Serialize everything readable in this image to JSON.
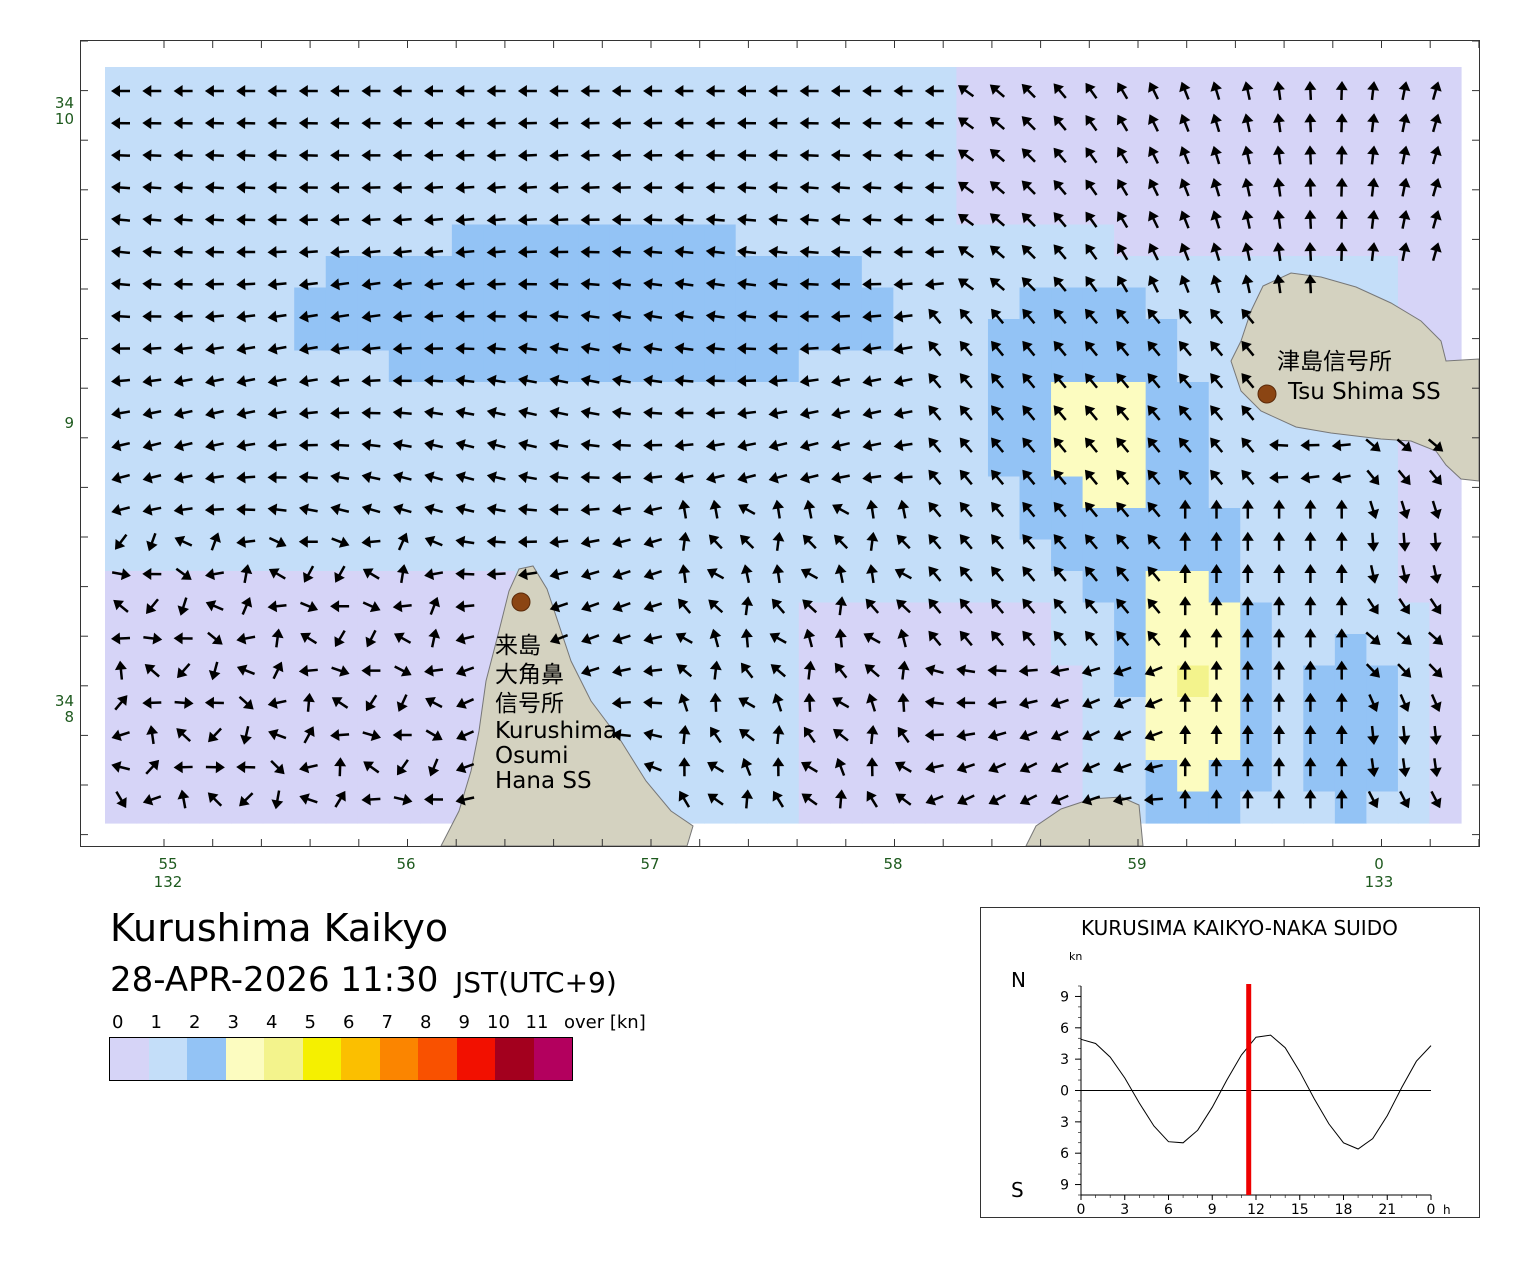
{
  "map": {
    "lat_labels": [
      {
        "deg": "34",
        "min": "10",
        "value": "34°10'"
      },
      {
        "deg": "",
        "min": "9",
        "value": "34°9'"
      },
      {
        "deg": "34",
        "min": "8",
        "value": "34°8'"
      }
    ],
    "lon_labels": [
      {
        "min": "55",
        "deg": "132",
        "value": "132°55'"
      },
      {
        "min": "56",
        "deg": "",
        "value": "132°56'"
      },
      {
        "min": "57",
        "deg": "",
        "value": "132°57'"
      },
      {
        "min": "58",
        "deg": "",
        "value": "132°58'"
      },
      {
        "min": "59",
        "deg": "",
        "value": "132°59'"
      },
      {
        "min": "0",
        "deg": "133",
        "value": "133°0'"
      }
    ],
    "stations": [
      {
        "name_jp": "津島信号所",
        "name_en": "Tsu Shima SS",
        "marker_color": "#8b4513"
      },
      {
        "name_jp_lines": [
          "来島",
          "大角鼻",
          "信号所"
        ],
        "name_en_lines": [
          "Kurushima",
          "Osumi",
          "Hana SS"
        ],
        "marker_color": "#8b4513"
      }
    ],
    "land_color": "#d4d2c0"
  },
  "title": "Kurushima Kaikyo",
  "datetime": "28-APR-2026 11:30",
  "timezone": "JST(UTC+9)",
  "legend": {
    "labels": [
      "0",
      "1",
      "2",
      "3",
      "4",
      "5",
      "6",
      "7",
      "8",
      "9",
      "10",
      "11",
      "over [kn]"
    ],
    "colors": [
      "#d6d4f7",
      "#c4def9",
      "#93c3f5",
      "#fcfcc0",
      "#f3f38c",
      "#f5f000",
      "#fbbf00",
      "#fb8500",
      "#f95100",
      "#f21000",
      "#a3001e",
      "#b3005e"
    ],
    "unit": "kn"
  },
  "tide_chart": {
    "title": "KURUSIMA KAIKYO-NAKA SUIDO",
    "unit": "kn",
    "north_label": "N",
    "south_label": "S",
    "y_tick_labels": [
      "9",
      "6",
      "3",
      "0",
      "3",
      "6",
      "9"
    ],
    "x_tick_labels": [
      "0",
      "3",
      "6",
      "9",
      "12",
      "15",
      "18",
      "21",
      "0"
    ],
    "x_unit": "h",
    "current_time_hours": 11.5,
    "current_marker_color": "#ee0000"
  },
  "chart_data": {
    "type": "line",
    "title": "KURUSIMA KAIKYO-NAKA SUIDO",
    "xlabel": "h",
    "ylabel": "kn",
    "xlim": [
      0,
      24
    ],
    "ylim": [
      -10,
      10
    ],
    "series": [
      {
        "x": [
          0,
          1,
          2,
          3,
          4,
          5,
          6,
          7,
          8,
          9,
          10,
          11,
          12,
          13,
          14,
          15,
          16,
          17,
          18,
          19,
          20,
          21,
          22,
          23,
          24
        ],
        "y": [
          4.9,
          4.5,
          3.2,
          1.2,
          -1.2,
          -3.4,
          -4.9,
          -5.0,
          -3.8,
          -1.6,
          1.0,
          3.4,
          5.1,
          5.3,
          4.1,
          1.8,
          -0.8,
          -3.2,
          -5.0,
          -5.6,
          -4.6,
          -2.4,
          0.3,
          2.8,
          4.3
        ]
      }
    ],
    "current_time": 11.5
  }
}
